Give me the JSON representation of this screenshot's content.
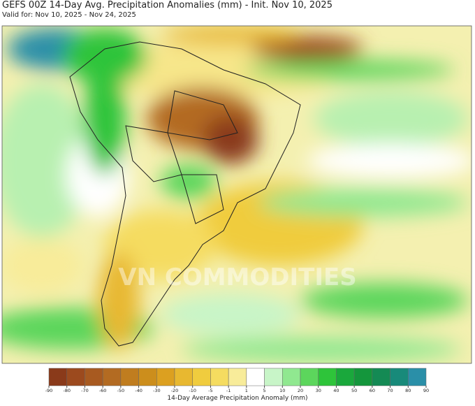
{
  "header": {
    "title": "GEFS 00Z 14-Day Avg. Precipitation Anomalies (mm) - Init. Nov 10, 2025",
    "subtitle": "Valid for: Nov 10, 2025 - Nov 24, 2025"
  },
  "map": {
    "watermark": "VN COMMODITIES"
  },
  "colorbar": {
    "label": "14-Day Average Precipitation Anomaly (mm)",
    "ticks": [
      -90,
      -80,
      -70,
      -60,
      -50,
      -40,
      -30,
      -20,
      -10,
      -5,
      -1,
      1,
      5,
      10,
      20,
      30,
      40,
      50,
      60,
      70,
      80,
      90
    ],
    "colors": [
      "#8a3a1a",
      "#9c4a1e",
      "#a85a20",
      "#b36b22",
      "#c07d1f",
      "#cc8e1c",
      "#dca020",
      "#e8b830",
      "#f0cc3e",
      "#f5dc60",
      "#f8ec9a",
      "#ffffff",
      "#c8f5c8",
      "#90e890",
      "#5cd65c",
      "#2ec43a",
      "#1aa83c",
      "#14963c",
      "#148a54",
      "#188a7a",
      "#2a8fa8"
    ]
  }
}
